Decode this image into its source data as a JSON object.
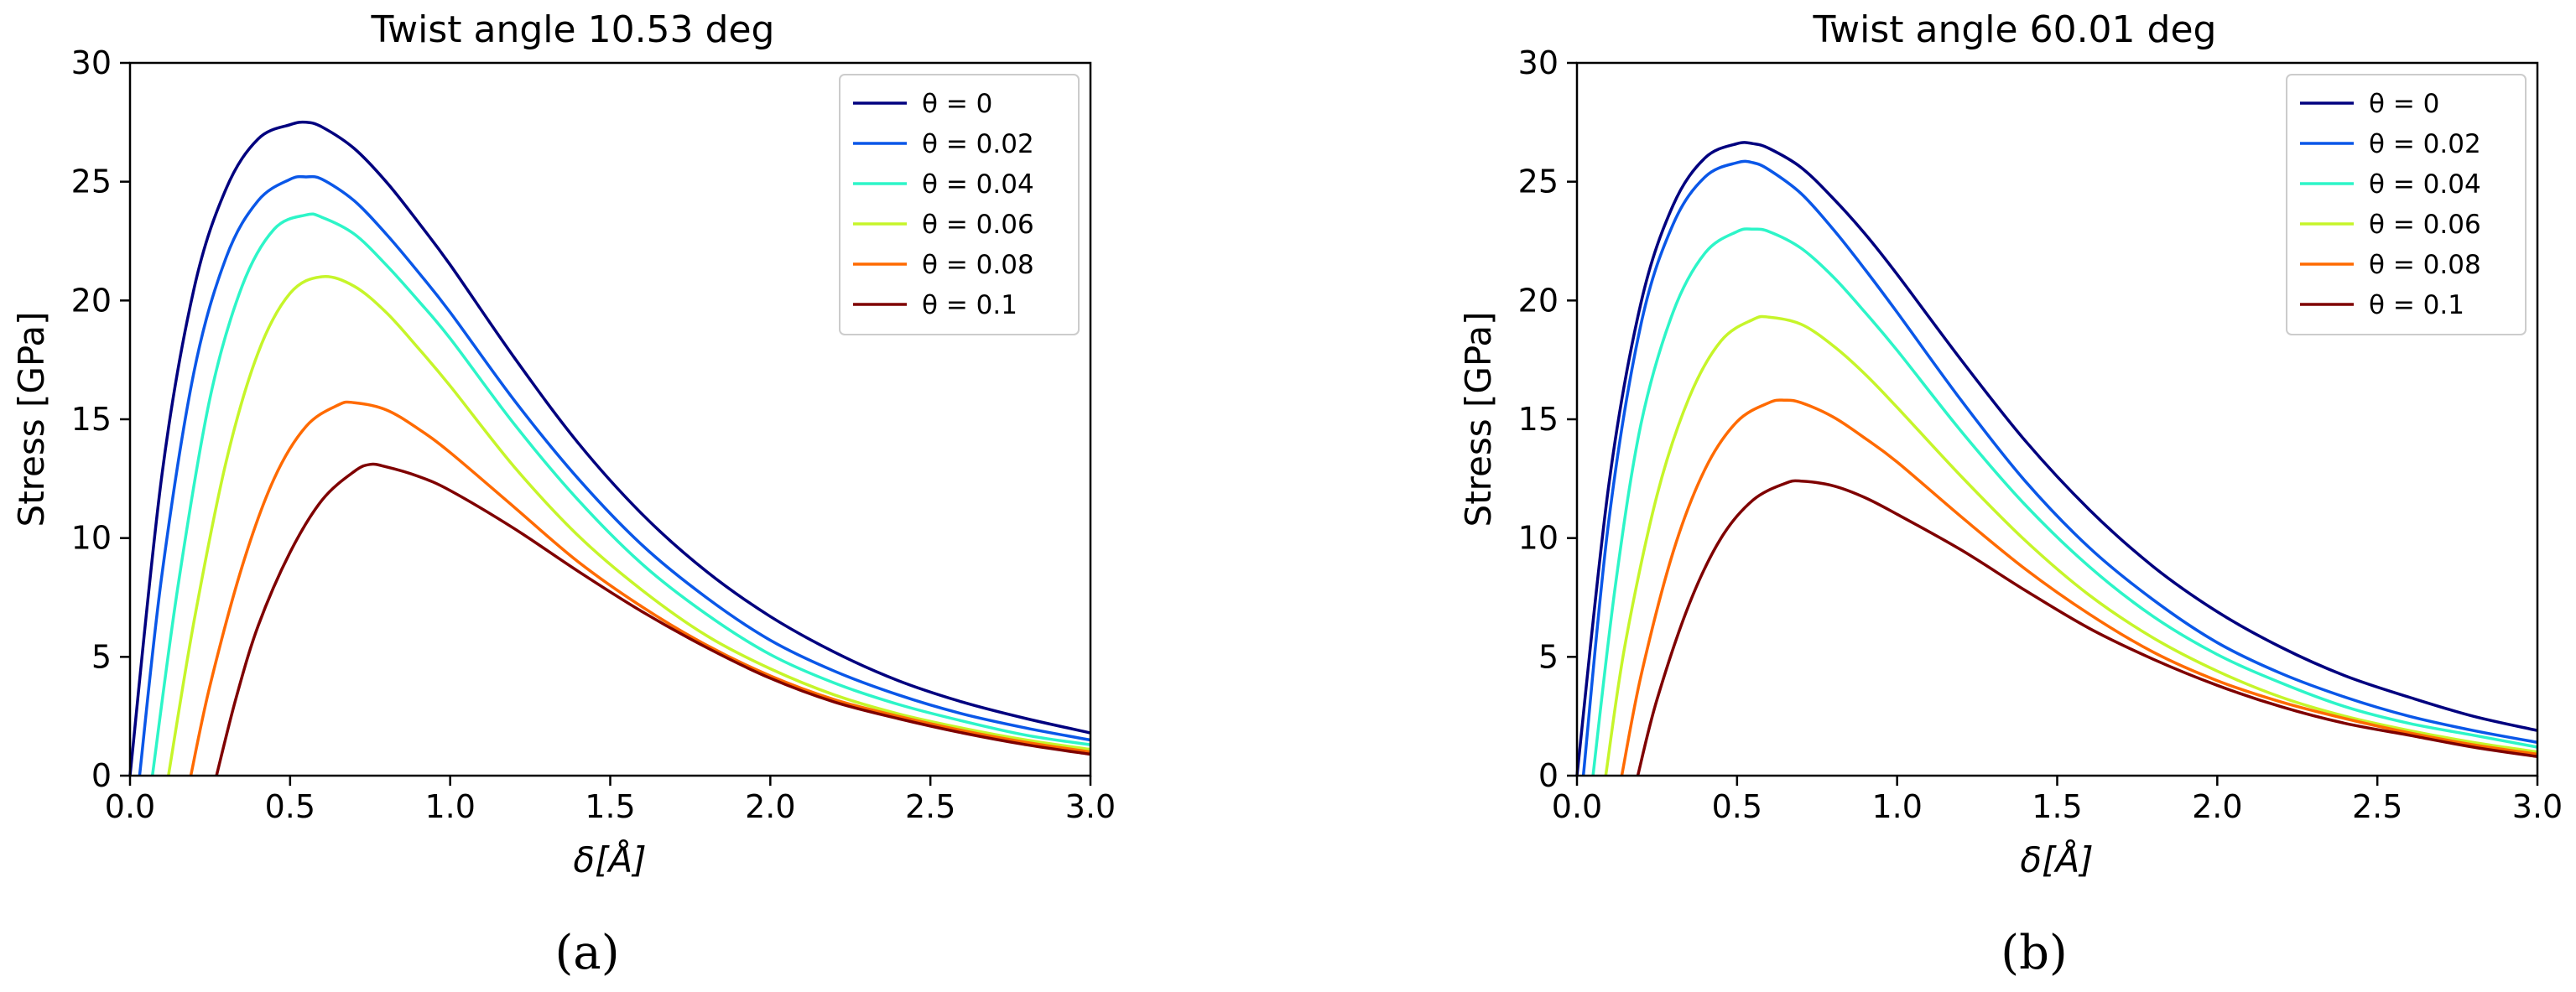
{
  "chart_data": [
    {
      "type": "line",
      "panel_label": "(a)",
      "title": "Twist angle 10.53 deg",
      "xlabel": "δ[Å]",
      "ylabel": "Stress [GPa]",
      "xlim": [
        0,
        3.0
      ],
      "ylim": [
        0,
        30
      ],
      "xticks": [
        "0.0",
        "0.5",
        "1.0",
        "1.5",
        "2.0",
        "2.5",
        "3.0"
      ],
      "yticks": [
        "0",
        "5",
        "10",
        "15",
        "20",
        "25",
        "30"
      ],
      "legend_position": "top-right",
      "series": [
        {
          "name": "θ = 0",
          "color": "#00007f",
          "points": [
            [
              0,
              0
            ],
            [
              0.1,
              12.7
            ],
            [
              0.2,
              20.5
            ],
            [
              0.3,
              24.7
            ],
            [
              0.4,
              26.8
            ],
            [
              0.5,
              27.4
            ],
            [
              0.55,
              27.5
            ],
            [
              0.6,
              27.3
            ],
            [
              0.7,
              26.4
            ],
            [
              0.8,
              25.0
            ],
            [
              0.9,
              23.3
            ],
            [
              1.0,
              21.5
            ],
            [
              1.2,
              17.6
            ],
            [
              1.4,
              14.0
            ],
            [
              1.6,
              11.0
            ],
            [
              1.8,
              8.6
            ],
            [
              2.0,
              6.7
            ],
            [
              2.2,
              5.2
            ],
            [
              2.4,
              4.0
            ],
            [
              2.6,
              3.1
            ],
            [
              2.8,
              2.4
            ],
            [
              3.0,
              1.8
            ]
          ]
        },
        {
          "name": "θ = 0.02",
          "color": "#0a57e8",
          "points": [
            [
              0.03,
              0
            ],
            [
              0.1,
              8.5
            ],
            [
              0.2,
              17.0
            ],
            [
              0.3,
              21.8
            ],
            [
              0.4,
              24.2
            ],
            [
              0.5,
              25.1
            ],
            [
              0.55,
              25.2
            ],
            [
              0.6,
              25.1
            ],
            [
              0.7,
              24.2
            ],
            [
              0.8,
              22.8
            ],
            [
              0.9,
              21.2
            ],
            [
              1.0,
              19.5
            ],
            [
              1.2,
              15.8
            ],
            [
              1.4,
              12.5
            ],
            [
              1.6,
              9.7
            ],
            [
              1.8,
              7.5
            ],
            [
              2.0,
              5.7
            ],
            [
              2.2,
              4.4
            ],
            [
              2.4,
              3.4
            ],
            [
              2.6,
              2.6
            ],
            [
              2.8,
              2.0
            ],
            [
              3.0,
              1.5
            ]
          ]
        },
        {
          "name": "θ = 0.04",
          "color": "#2df5c8",
          "points": [
            [
              0.07,
              0
            ],
            [
              0.15,
              8.0
            ],
            [
              0.25,
              15.9
            ],
            [
              0.35,
              20.6
            ],
            [
              0.45,
              23.0
            ],
            [
              0.55,
              23.6
            ],
            [
              0.6,
              23.5
            ],
            [
              0.7,
              22.8
            ],
            [
              0.8,
              21.5
            ],
            [
              0.9,
              20.0
            ],
            [
              1.0,
              18.4
            ],
            [
              1.2,
              14.8
            ],
            [
              1.4,
              11.6
            ],
            [
              1.6,
              8.9
            ],
            [
              1.8,
              6.8
            ],
            [
              2.0,
              5.1
            ],
            [
              2.2,
              3.9
            ],
            [
              2.4,
              3.0
            ],
            [
              2.6,
              2.3
            ],
            [
              2.8,
              1.7
            ],
            [
              3.0,
              1.3
            ]
          ]
        },
        {
          "name": "θ = 0.06",
          "color": "#c6f52a",
          "points": [
            [
              0.12,
              0
            ],
            [
              0.2,
              6.5
            ],
            [
              0.3,
              13.2
            ],
            [
              0.4,
              17.8
            ],
            [
              0.5,
              20.3
            ],
            [
              0.6,
              21.0
            ],
            [
              0.7,
              20.6
            ],
            [
              0.8,
              19.5
            ],
            [
              0.9,
              18.0
            ],
            [
              1.0,
              16.4
            ],
            [
              1.2,
              13.0
            ],
            [
              1.4,
              10.1
            ],
            [
              1.6,
              7.8
            ],
            [
              1.8,
              5.9
            ],
            [
              2.0,
              4.5
            ],
            [
              2.2,
              3.4
            ],
            [
              2.4,
              2.6
            ],
            [
              2.6,
              2.0
            ],
            [
              2.8,
              1.5
            ],
            [
              3.0,
              1.1
            ]
          ]
        },
        {
          "name": "θ = 0.08",
          "color": "#ff6a00",
          "points": [
            [
              0.19,
              0
            ],
            [
              0.25,
              3.8
            ],
            [
              0.35,
              8.8
            ],
            [
              0.45,
              12.5
            ],
            [
              0.55,
              14.7
            ],
            [
              0.65,
              15.6
            ],
            [
              0.7,
              15.7
            ],
            [
              0.8,
              15.4
            ],
            [
              0.9,
              14.6
            ],
            [
              1.0,
              13.6
            ],
            [
              1.2,
              11.3
            ],
            [
              1.4,
              9.0
            ],
            [
              1.6,
              7.1
            ],
            [
              1.8,
              5.5
            ],
            [
              2.0,
              4.2
            ],
            [
              2.2,
              3.2
            ],
            [
              2.4,
              2.5
            ],
            [
              2.6,
              1.9
            ],
            [
              2.8,
              1.4
            ],
            [
              3.0,
              1.0
            ]
          ]
        },
        {
          "name": "θ = 0.1",
          "color": "#7f0000",
          "points": [
            [
              0.27,
              0
            ],
            [
              0.33,
              3.2
            ],
            [
              0.4,
              6.3
            ],
            [
              0.5,
              9.4
            ],
            [
              0.6,
              11.6
            ],
            [
              0.7,
              12.8
            ],
            [
              0.75,
              13.1
            ],
            [
              0.8,
              13.0
            ],
            [
              0.9,
              12.6
            ],
            [
              1.0,
              12.0
            ],
            [
              1.2,
              10.4
            ],
            [
              1.4,
              8.6
            ],
            [
              1.6,
              6.9
            ],
            [
              1.8,
              5.4
            ],
            [
              2.0,
              4.1
            ],
            [
              2.2,
              3.1
            ],
            [
              2.4,
              2.4
            ],
            [
              2.6,
              1.8
            ],
            [
              2.8,
              1.3
            ],
            [
              3.0,
              0.9
            ]
          ]
        }
      ]
    },
    {
      "type": "line",
      "panel_label": "(b)",
      "title": "Twist angle 60.01 deg",
      "xlabel": "δ[Å]",
      "ylabel": "Stress [GPa]",
      "xlim": [
        0,
        3.0
      ],
      "ylim": [
        0,
        30
      ],
      "xticks": [
        "0.0",
        "0.5",
        "1.0",
        "1.5",
        "2.0",
        "2.5",
        "3.0"
      ],
      "yticks": [
        "0",
        "5",
        "10",
        "15",
        "20",
        "25",
        "30"
      ],
      "legend_position": "top-right",
      "series": [
        {
          "name": "θ = 0",
          "color": "#00007f",
          "points": [
            [
              0,
              0
            ],
            [
              0.1,
              12.3
            ],
            [
              0.2,
              19.9
            ],
            [
              0.3,
              24.0
            ],
            [
              0.4,
              26.0
            ],
            [
              0.5,
              26.6
            ],
            [
              0.55,
              26.6
            ],
            [
              0.6,
              26.4
            ],
            [
              0.7,
              25.6
            ],
            [
              0.8,
              24.3
            ],
            [
              0.9,
              22.8
            ],
            [
              1.0,
              21.1
            ],
            [
              1.2,
              17.5
            ],
            [
              1.4,
              14.1
            ],
            [
              1.6,
              11.2
            ],
            [
              1.8,
              8.8
            ],
            [
              2.0,
              6.9
            ],
            [
              2.2,
              5.4
            ],
            [
              2.4,
              4.2
            ],
            [
              2.6,
              3.3
            ],
            [
              2.8,
              2.5
            ],
            [
              3.0,
              1.9
            ]
          ]
        },
        {
          "name": "θ = 0.02",
          "color": "#0a57e8",
          "points": [
            [
              0.02,
              0
            ],
            [
              0.1,
              10.8
            ],
            [
              0.2,
              19.0
            ],
            [
              0.3,
              23.2
            ],
            [
              0.4,
              25.2
            ],
            [
              0.5,
              25.8
            ],
            [
              0.55,
              25.8
            ],
            [
              0.6,
              25.5
            ],
            [
              0.7,
              24.5
            ],
            [
              0.8,
              23.0
            ],
            [
              0.9,
              21.3
            ],
            [
              1.0,
              19.5
            ],
            [
              1.2,
              15.8
            ],
            [
              1.4,
              12.4
            ],
            [
              1.6,
              9.6
            ],
            [
              1.8,
              7.4
            ],
            [
              2.0,
              5.6
            ],
            [
              2.2,
              4.3
            ],
            [
              2.4,
              3.3
            ],
            [
              2.6,
              2.5
            ],
            [
              2.8,
              1.9
            ],
            [
              3.0,
              1.4
            ]
          ]
        },
        {
          "name": "θ = 0.04",
          "color": "#2df5c8",
          "points": [
            [
              0.05,
              0
            ],
            [
              0.12,
              8.0
            ],
            [
              0.2,
              14.8
            ],
            [
              0.3,
              19.5
            ],
            [
              0.4,
              22.0
            ],
            [
              0.5,
              22.9
            ],
            [
              0.55,
              23.0
            ],
            [
              0.6,
              22.9
            ],
            [
              0.7,
              22.2
            ],
            [
              0.8,
              21.0
            ],
            [
              0.9,
              19.5
            ],
            [
              1.0,
              17.9
            ],
            [
              1.2,
              14.5
            ],
            [
              1.4,
              11.4
            ],
            [
              1.6,
              8.8
            ],
            [
              1.8,
              6.7
            ],
            [
              2.0,
              5.1
            ],
            [
              2.2,
              3.9
            ],
            [
              2.4,
              2.9
            ],
            [
              2.6,
              2.2
            ],
            [
              2.8,
              1.7
            ],
            [
              3.0,
              1.2
            ]
          ]
        },
        {
          "name": "θ = 0.06",
          "color": "#c6f52a",
          "points": [
            [
              0.09,
              0
            ],
            [
              0.15,
              5.5
            ],
            [
              0.25,
              11.8
            ],
            [
              0.35,
              15.9
            ],
            [
              0.45,
              18.3
            ],
            [
              0.55,
              19.2
            ],
            [
              0.6,
              19.3
            ],
            [
              0.7,
              19.0
            ],
            [
              0.8,
              18.1
            ],
            [
              0.9,
              16.9
            ],
            [
              1.0,
              15.5
            ],
            [
              1.2,
              12.6
            ],
            [
              1.4,
              9.9
            ],
            [
              1.6,
              7.6
            ],
            [
              1.8,
              5.8
            ],
            [
              2.0,
              4.4
            ],
            [
              2.2,
              3.3
            ],
            [
              2.4,
              2.5
            ],
            [
              2.6,
              1.9
            ],
            [
              2.8,
              1.4
            ],
            [
              3.0,
              1.0
            ]
          ]
        },
        {
          "name": "θ = 0.08",
          "color": "#ff6a00",
          "points": [
            [
              0.14,
              0
            ],
            [
              0.2,
              4.2
            ],
            [
              0.3,
              9.4
            ],
            [
              0.4,
              12.9
            ],
            [
              0.5,
              14.9
            ],
            [
              0.6,
              15.7
            ],
            [
              0.65,
              15.8
            ],
            [
              0.7,
              15.7
            ],
            [
              0.8,
              15.1
            ],
            [
              0.9,
              14.2
            ],
            [
              1.0,
              13.2
            ],
            [
              1.2,
              10.9
            ],
            [
              1.4,
              8.7
            ],
            [
              1.6,
              6.8
            ],
            [
              1.8,
              5.2
            ],
            [
              2.0,
              4.0
            ],
            [
              2.2,
              3.1
            ],
            [
              2.4,
              2.4
            ],
            [
              2.6,
              1.8
            ],
            [
              2.8,
              1.3
            ],
            [
              3.0,
              0.9
            ]
          ]
        },
        {
          "name": "θ = 0.1",
          "color": "#7f0000",
          "points": [
            [
              0.19,
              0
            ],
            [
              0.25,
              3.2
            ],
            [
              0.35,
              7.2
            ],
            [
              0.45,
              10.0
            ],
            [
              0.55,
              11.6
            ],
            [
              0.65,
              12.3
            ],
            [
              0.7,
              12.4
            ],
            [
              0.8,
              12.2
            ],
            [
              0.9,
              11.7
            ],
            [
              1.0,
              11.0
            ],
            [
              1.2,
              9.5
            ],
            [
              1.4,
              7.8
            ],
            [
              1.6,
              6.2
            ],
            [
              1.8,
              4.9
            ],
            [
              2.0,
              3.8
            ],
            [
              2.2,
              2.9
            ],
            [
              2.4,
              2.2
            ],
            [
              2.6,
              1.7
            ],
            [
              2.8,
              1.2
            ],
            [
              3.0,
              0.8
            ]
          ]
        }
      ]
    }
  ]
}
